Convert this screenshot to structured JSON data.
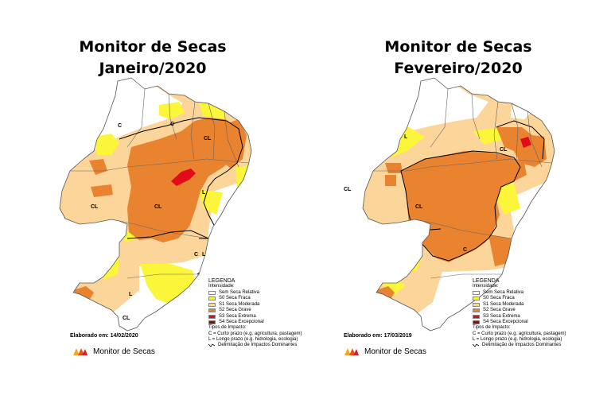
{
  "colors": {
    "none": "#ffffff",
    "d0": "#fbf63a",
    "d1": "#fcd59a",
    "d2": "#e9832f",
    "d3": "#e20b1a",
    "d4": "#6f1a10"
  },
  "panels": [
    {
      "title_line1": "Monitor de Secas",
      "title_line2": "Janeiro/2020",
      "elaborado": "Elaborado em: 14/02/2020",
      "impact_labels": [
        "C",
        "C",
        "CL",
        "L",
        "CL",
        "CL",
        "L",
        "C",
        "L",
        "CL"
      ]
    },
    {
      "title_line1": "Monitor de Secas",
      "title_line2": "Fevereiro/2020",
      "elaborado": "Elaborado em: 17/03/2019",
      "impact_labels": [
        "L",
        "CL",
        "CL",
        "CL",
        "C"
      ]
    }
  ],
  "legend": {
    "heading": "LEGENDA",
    "intensity_title": "Intensidade:",
    "items": [
      {
        "label": "Sem Seca Relativa",
        "color": "#ffffff"
      },
      {
        "label": "S0 Seca Fraca",
        "color": "#fbf63a"
      },
      {
        "label": "S1 Seca Moderada",
        "color": "#fcd59a"
      },
      {
        "label": "S2 Seca Grave",
        "color": "#e9832f"
      },
      {
        "label": "S3 Seca Extrema",
        "color": "#e20b1a"
      },
      {
        "label": "S4 Seca Excepcional",
        "color": "#6f1a10"
      }
    ],
    "impact_title": "Tipos de Impacto:",
    "impact_items": [
      "C = Curto prazo (e.g. agricultura, pastagem)",
      "L = Longo prazo (e.g. hidrologia, ecologia)",
      "Delimitação de Impactos Dominantes"
    ]
  },
  "brand": {
    "name": "Monitor de Secas",
    "logo_icon": "monitor-de-secas-logo-icon"
  }
}
